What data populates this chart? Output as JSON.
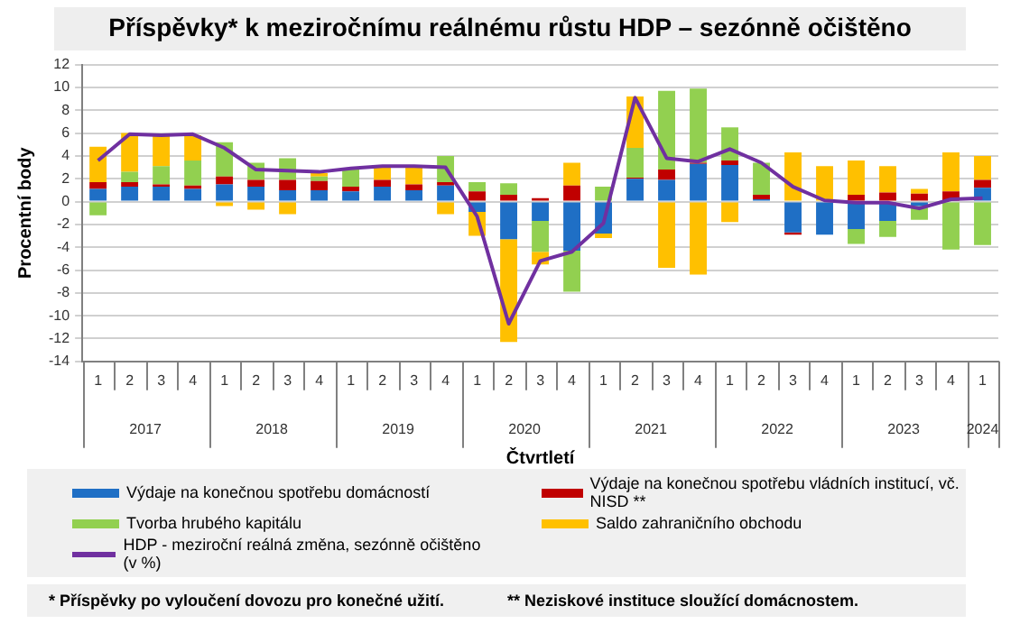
{
  "chart_data": {
    "type": "bar",
    "stacked": true,
    "title": "Příspěvky* k meziročnímu reálnému růstu HDP – sezónně očištěno",
    "xlabel": "Čtvrtletí",
    "ylabel": "Procentní body",
    "categories": [
      "1",
      "2",
      "3",
      "4",
      "1",
      "2",
      "3",
      "4",
      "1",
      "2",
      "3",
      "4",
      "1",
      "2",
      "3",
      "4",
      "1",
      "2",
      "3",
      "4",
      "1",
      "2",
      "3",
      "4",
      "1",
      "2",
      "3",
      "4",
      "1"
    ],
    "annotations": [
      "2017",
      "2018",
      "2019",
      "2020",
      "2021",
      "2022",
      "2023",
      "2024",
      "* Příspěvky po vyloučení dovozu pro konečné užití.",
      "** Neziskové instituce sloužící domácnostem."
    ],
    "ylim": [
      -14,
      12
    ],
    "yticks": [
      -14,
      -12,
      -10,
      -8,
      -6,
      -4,
      -2,
      0,
      2,
      4,
      6,
      8,
      10,
      12
    ],
    "grid": "y",
    "legend": "bottom",
    "marker": "none",
    "line_style": "solid",
    "series": [
      {
        "name": "Výdaje na konečnou spotřebu domácností",
        "color": "#1f6fc5",
        "values": [
          1.1,
          1.3,
          1.3,
          1.1,
          1.5,
          1.3,
          1.0,
          1.0,
          0.9,
          1.3,
          1.0,
          1.4,
          -0.9,
          -3.3,
          -1.7,
          -4.3,
          -2.8,
          2.0,
          1.9,
          3.3,
          3.2,
          0.2,
          -2.7,
          -2.9,
          -2.4,
          -1.7,
          -0.4,
          null,
          1.2
        ]
      },
      {
        "name": "Výdaje na konečnou spotřebu vládních institucí, vč. NISD **",
        "color": "#c00000",
        "values": [
          0.6,
          0.4,
          0.2,
          0.3,
          0.7,
          0.6,
          0.9,
          0.8,
          0.4,
          0.6,
          0.5,
          0.3,
          0.9,
          0.6,
          0.3,
          1.4,
          0.0,
          0.1,
          0.9,
          0.1,
          0.4,
          0.4,
          -0.2,
          0.0,
          0.6,
          0.8,
          0.7,
          0.9,
          0.7
        ]
      },
      {
        "name": "Tvorba hrubého kapitálu",
        "color": "#92d050",
        "values": [
          -1.2,
          0.9,
          1.6,
          2.2,
          3.0,
          1.5,
          1.9,
          0.4,
          1.6,
          0.0,
          0.0,
          2.3,
          0.8,
          1.0,
          -2.7,
          -3.6,
          1.3,
          2.6,
          6.9,
          6.5,
          2.9,
          2.8,
          0.0,
          0.0,
          -1.3,
          -1.4,
          -1.2,
          -4.2,
          -3.8
        ]
      },
      {
        "name": "Saldo zahraničního obchodu",
        "color": "#ffc000",
        "values": [
          3.1,
          3.4,
          2.7,
          2.2,
          -0.4,
          -0.7,
          -1.1,
          0.3,
          0.0,
          1.1,
          1.5,
          -1.1,
          -2.1,
          -9.0,
          -1.1,
          2.0,
          -0.4,
          4.5,
          -5.8,
          -6.4,
          -1.8,
          null,
          4.3,
          3.1,
          3.0,
          2.3,
          0.4,
          3.4,
          2.1
        ]
      },
      {
        "name": "HDP - meziroční reálná změna, sezónně očištěno (v %)",
        "type": "line",
        "color": "#7030a0",
        "values": [
          3.6,
          5.9,
          5.8,
          5.9,
          4.7,
          2.8,
          2.7,
          2.6,
          2.9,
          3.1,
          3.1,
          3.0,
          -1.3,
          -10.7,
          -5.2,
          -4.4,
          -1.9,
          9.1,
          3.8,
          3.5,
          4.6,
          3.4,
          1.3,
          0.1,
          -0.1,
          -0.1,
          -0.6,
          0.2,
          0.3
        ]
      }
    ]
  }
}
